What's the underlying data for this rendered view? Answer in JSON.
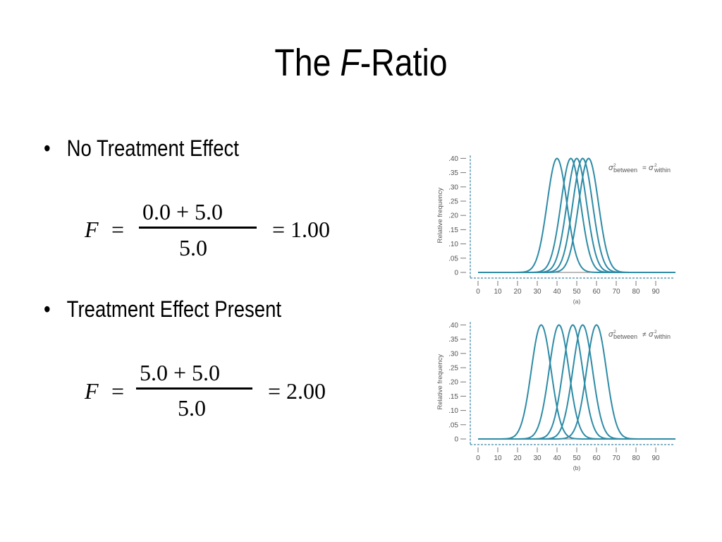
{
  "slide": {
    "title_prefix": "The ",
    "title_italic": "F",
    "title_suffix": "-Ratio"
  },
  "bullets": [
    {
      "marker": "•",
      "text": "No Treatment Effect"
    },
    {
      "marker": "•",
      "text": "Treatment Effect Present"
    }
  ],
  "equations": [
    {
      "lhs": "F",
      "equals": "=",
      "numerator": "0.0 + 5.0",
      "denominator": "5.0",
      "result": "= 1.00"
    },
    {
      "lhs": "F",
      "equals": "=",
      "numerator": "5.0 + 5.0",
      "denominator": "5.0",
      "result": "= 2.00"
    }
  ],
  "colors": {
    "curve": "#2e8ba6",
    "axis": "#777777",
    "dashed_axis": "#3d86a8"
  },
  "chart_data": [
    {
      "type": "line",
      "caption": "(a)",
      "ylabel": "Relative frequency",
      "legend_sigma": "σ",
      "legend_between": "between",
      "legend_within": "within",
      "legend_op": "=",
      "legend_sup": "2",
      "ylim": [
        0,
        0.4
      ],
      "xlim": [
        0,
        100
      ],
      "yticks": [
        0,
        0.05,
        0.1,
        0.15,
        0.2,
        0.25,
        0.3,
        0.35,
        0.4
      ],
      "ytick_labels": [
        "0",
        ".05",
        ".10",
        ".15",
        ".20",
        ".25",
        ".30",
        ".35",
        ".40"
      ],
      "xticks": [
        0,
        10,
        20,
        30,
        40,
        50,
        60,
        70,
        80,
        90
      ],
      "xtick_labels": [
        "0",
        "10",
        "20",
        "30",
        "40",
        "50",
        "60",
        "70",
        "80",
        "90"
      ],
      "sd": 5,
      "peak": 0.4,
      "series": [
        {
          "mean": 40
        },
        {
          "mean": 47
        },
        {
          "mean": 50
        },
        {
          "mean": 53
        },
        {
          "mean": 56
        }
      ]
    },
    {
      "type": "line",
      "caption": "(b)",
      "ylabel": "Relative frequency",
      "legend_sigma": "σ",
      "legend_between": "between",
      "legend_within": "within",
      "legend_op": "≠",
      "legend_sup": "2",
      "ylim": [
        0,
        0.4
      ],
      "xlim": [
        0,
        100
      ],
      "yticks": [
        0,
        0.05,
        0.1,
        0.15,
        0.2,
        0.25,
        0.3,
        0.35,
        0.4
      ],
      "ytick_labels": [
        "0",
        ".05",
        ".10",
        ".15",
        ".20",
        ".25",
        ".30",
        ".35",
        ".40"
      ],
      "xticks": [
        0,
        10,
        20,
        30,
        40,
        50,
        60,
        70,
        80,
        90
      ],
      "xtick_labels": [
        "0",
        "10",
        "20",
        "30",
        "40",
        "50",
        "60",
        "70",
        "80",
        "90"
      ],
      "sd": 5,
      "peak": 0.4,
      "series": [
        {
          "mean": 32
        },
        {
          "mean": 41
        },
        {
          "mean": 48
        },
        {
          "mean": 53
        },
        {
          "mean": 60
        }
      ]
    }
  ]
}
